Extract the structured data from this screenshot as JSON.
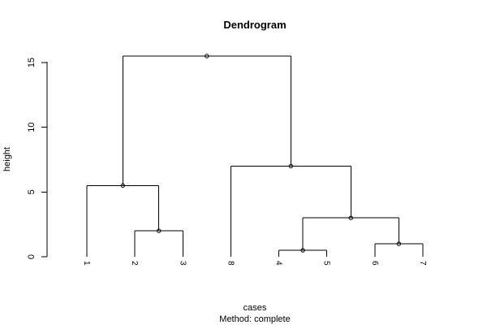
{
  "chart_data": {
    "type": "dendrogram",
    "title": "Dendrogram",
    "xlabel": "cases",
    "ylabel": "height",
    "subtitle": "Method:  complete",
    "ylim": [
      0,
      15.5
    ],
    "y_ticks": [
      0,
      5,
      10,
      15
    ],
    "leaf_order": [
      "1",
      "2",
      "3",
      "8",
      "4",
      "5",
      "6",
      "7"
    ],
    "merges": [
      {
        "id": "m45",
        "left": "4",
        "right": "5",
        "height": 0.5
      },
      {
        "id": "m67",
        "left": "6",
        "right": "7",
        "height": 1.0
      },
      {
        "id": "m23",
        "left": "2",
        "right": "3",
        "height": 2.0
      },
      {
        "id": "m4567",
        "left": "m45",
        "right": "m67",
        "height": 3.0
      },
      {
        "id": "m123",
        "left": "1",
        "right": "m23",
        "height": 5.5
      },
      {
        "id": "m84567",
        "left": "8",
        "right": "m4567",
        "height": 7.0
      },
      {
        "id": "root",
        "left": "m123",
        "right": "m84567",
        "height": 15.5
      }
    ]
  }
}
